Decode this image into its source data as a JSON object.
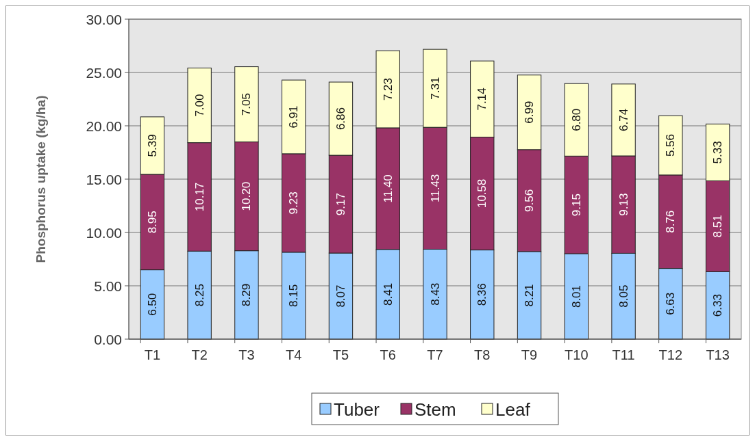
{
  "chart_data": {
    "type": "bar",
    "stacked": true,
    "ylabel": "Phosphorus uptake (kg/ha)",
    "categories": [
      "T1",
      "T2",
      "T3",
      "T4",
      "T5",
      "T6",
      "T7",
      "T8",
      "T9",
      "T10",
      "T11",
      "T12",
      "T13"
    ],
    "ylim": [
      0,
      30
    ],
    "yticks": [
      {
        "value": 0,
        "label": "0.00"
      },
      {
        "value": 5,
        "label": "5.00"
      },
      {
        "value": 10,
        "label": "10.00"
      },
      {
        "value": 15,
        "label": "15.00"
      },
      {
        "value": 20,
        "label": "20.00"
      },
      {
        "value": 25,
        "label": "25.00"
      },
      {
        "value": 30,
        "label": "30.00"
      }
    ],
    "grid": "y",
    "legend": "bottom",
    "series": [
      {
        "name": "Tuber",
        "color": "#99ccff",
        "values": [
          6.5,
          8.25,
          8.29,
          8.15,
          8.07,
          8.41,
          8.43,
          8.36,
          8.21,
          8.01,
          8.05,
          6.63,
          6.33
        ],
        "value_labels": [
          "6.50",
          "8.25",
          "8.29",
          "8.15",
          "8.07",
          "8.41",
          "8.43",
          "8.36",
          "8.21",
          "8.01",
          "8.05",
          "6.63",
          "6.33"
        ]
      },
      {
        "name": "Stem",
        "color": "#993366",
        "values": [
          8.95,
          10.17,
          10.2,
          9.23,
          9.17,
          11.4,
          11.43,
          10.58,
          9.56,
          9.15,
          9.13,
          8.76,
          8.51
        ],
        "value_labels": [
          "8.95",
          "10.17",
          "10.20",
          "9.23",
          "9.17",
          "11.40",
          "11.43",
          "10.58",
          "9.56",
          "9.15",
          "9.13",
          "8.76",
          "8.51"
        ]
      },
      {
        "name": "Leaf",
        "color": "#ffffcc",
        "values": [
          5.39,
          7.0,
          7.05,
          6.91,
          6.86,
          7.23,
          7.31,
          7.14,
          6.99,
          6.8,
          6.74,
          5.56,
          5.33
        ],
        "value_labels": [
          "5.39",
          "7.00",
          "7.05",
          "6.91",
          "6.86",
          "7.23",
          "7.31",
          "7.14",
          "6.99",
          "6.80",
          "6.74",
          "5.56",
          "5.33"
        ]
      }
    ]
  }
}
